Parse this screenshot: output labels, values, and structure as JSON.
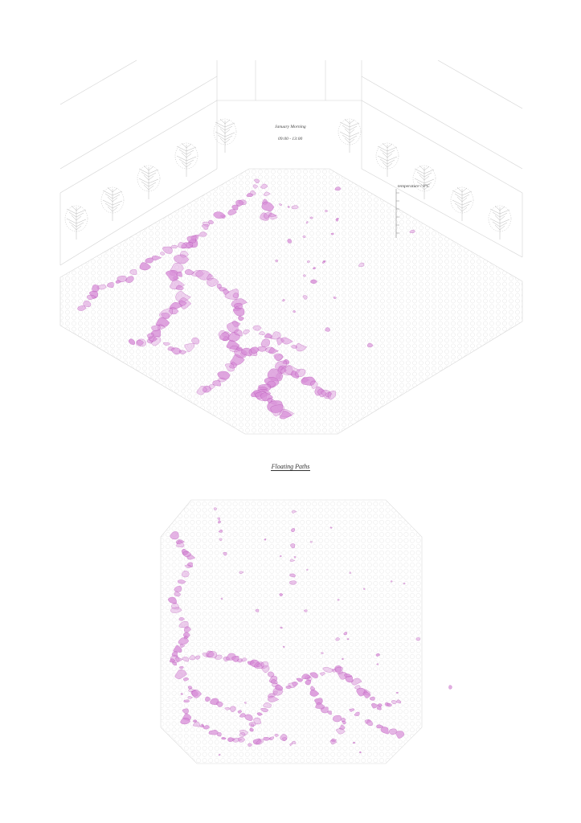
{
  "top_panel": {
    "caption_line1": "January Morning",
    "caption_line2": "09:00 - 13:00",
    "legend_label": "temperature / 0°C"
  },
  "section_title": "Floating Paths",
  "colors": {
    "path_fill": "#d68ad6",
    "path_stroke": "#a93aa9",
    "grid": "#e4e4e4",
    "context_lines": "#cfcfcf",
    "tree": "#b8b8b8"
  }
}
